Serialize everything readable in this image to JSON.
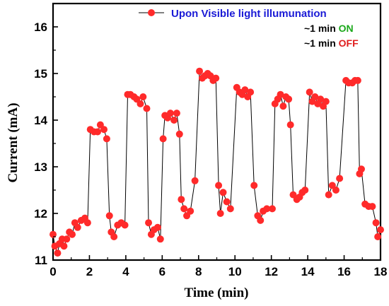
{
  "chart_data": {
    "type": "line",
    "xlabel": "Time (min)",
    "ylabel": "Current (mA)",
    "xlim": [
      0,
      18
    ],
    "ylim": [
      11,
      16.5
    ],
    "xticks": [
      "0",
      "2",
      "4",
      "6",
      "8",
      "10",
      "12",
      "14",
      "16",
      "18"
    ],
    "yticks": [
      "11",
      "12",
      "13",
      "14",
      "15",
      "16"
    ],
    "legend_position": "top-right",
    "grid": false,
    "colors": {
      "marker": "#ff2a2a",
      "line": "#000000",
      "legend_title": "#1a1ad6",
      "on": "#1aa81a",
      "off": "#e01e1e"
    },
    "legend": {
      "series_label": "Upon Visible light illumunation",
      "line2_prefix": "~1 min ",
      "line2_word": "ON",
      "line3_prefix": "~1 min ",
      "line3_word": "OFF"
    },
    "series": [
      {
        "x": [
          0.0,
          0.1,
          0.25,
          0.35,
          0.5,
          0.6,
          0.75,
          0.9,
          1.05,
          1.2,
          1.35,
          1.55,
          1.75,
          1.9,
          2.05,
          2.25,
          2.45,
          2.6,
          2.8,
          2.95,
          3.1,
          3.2,
          3.35,
          3.55,
          3.75,
          3.95,
          4.1,
          4.25,
          4.45,
          4.6,
          4.8,
          4.95,
          5.15,
          5.25,
          5.4,
          5.55,
          5.75,
          5.9,
          6.05,
          6.15,
          6.3,
          6.45,
          6.65,
          6.8,
          6.95,
          7.05,
          7.2,
          7.35,
          7.55,
          7.8,
          8.05,
          8.2,
          8.35,
          8.5,
          8.65,
          8.8,
          8.95,
          9.1,
          9.2,
          9.35,
          9.55,
          9.75,
          10.1,
          10.25,
          10.4,
          10.55,
          10.7,
          10.85,
          11.05,
          11.25,
          11.4,
          11.55,
          11.75,
          12.05,
          12.2,
          12.35,
          12.5,
          12.65,
          12.8,
          12.95,
          13.05,
          13.2,
          13.4,
          13.55,
          13.7,
          13.85,
          14.1,
          14.25,
          14.4,
          14.55,
          14.7,
          14.85,
          15.0,
          15.15,
          15.35,
          15.55,
          15.75,
          16.1,
          16.25,
          16.45,
          16.6,
          16.75,
          16.85,
          16.95,
          17.15,
          17.35,
          17.55,
          17.75,
          17.85,
          18.0
        ],
        "y": [
          11.55,
          11.3,
          11.15,
          11.35,
          11.45,
          11.3,
          11.45,
          11.6,
          11.55,
          11.8,
          11.7,
          11.85,
          11.9,
          11.8,
          13.8,
          13.75,
          13.75,
          13.9,
          13.8,
          13.6,
          11.95,
          11.6,
          11.5,
          11.75,
          11.8,
          11.75,
          14.55,
          14.55,
          14.5,
          14.45,
          14.35,
          14.5,
          14.25,
          11.8,
          11.55,
          11.65,
          11.7,
          11.45,
          13.6,
          14.1,
          14.05,
          14.15,
          14.0,
          14.15,
          13.7,
          12.3,
          12.1,
          11.95,
          12.05,
          12.7,
          15.05,
          14.9,
          14.95,
          15.0,
          14.95,
          14.85,
          14.9,
          12.6,
          12.0,
          12.45,
          12.25,
          12.1,
          14.7,
          14.6,
          14.55,
          14.65,
          14.5,
          14.6,
          12.6,
          11.95,
          11.85,
          12.05,
          12.1,
          12.1,
          14.35,
          14.45,
          14.55,
          14.3,
          14.5,
          14.45,
          13.9,
          12.4,
          12.3,
          12.35,
          12.45,
          12.5,
          14.6,
          14.4,
          14.5,
          14.35,
          14.45,
          14.3,
          14.4,
          12.4,
          12.6,
          12.5,
          12.75,
          14.85,
          14.8,
          14.8,
          14.85,
          14.85,
          12.85,
          12.95,
          12.2,
          12.15,
          12.15,
          11.8,
          11.5,
          11.65
        ]
      }
    ]
  }
}
